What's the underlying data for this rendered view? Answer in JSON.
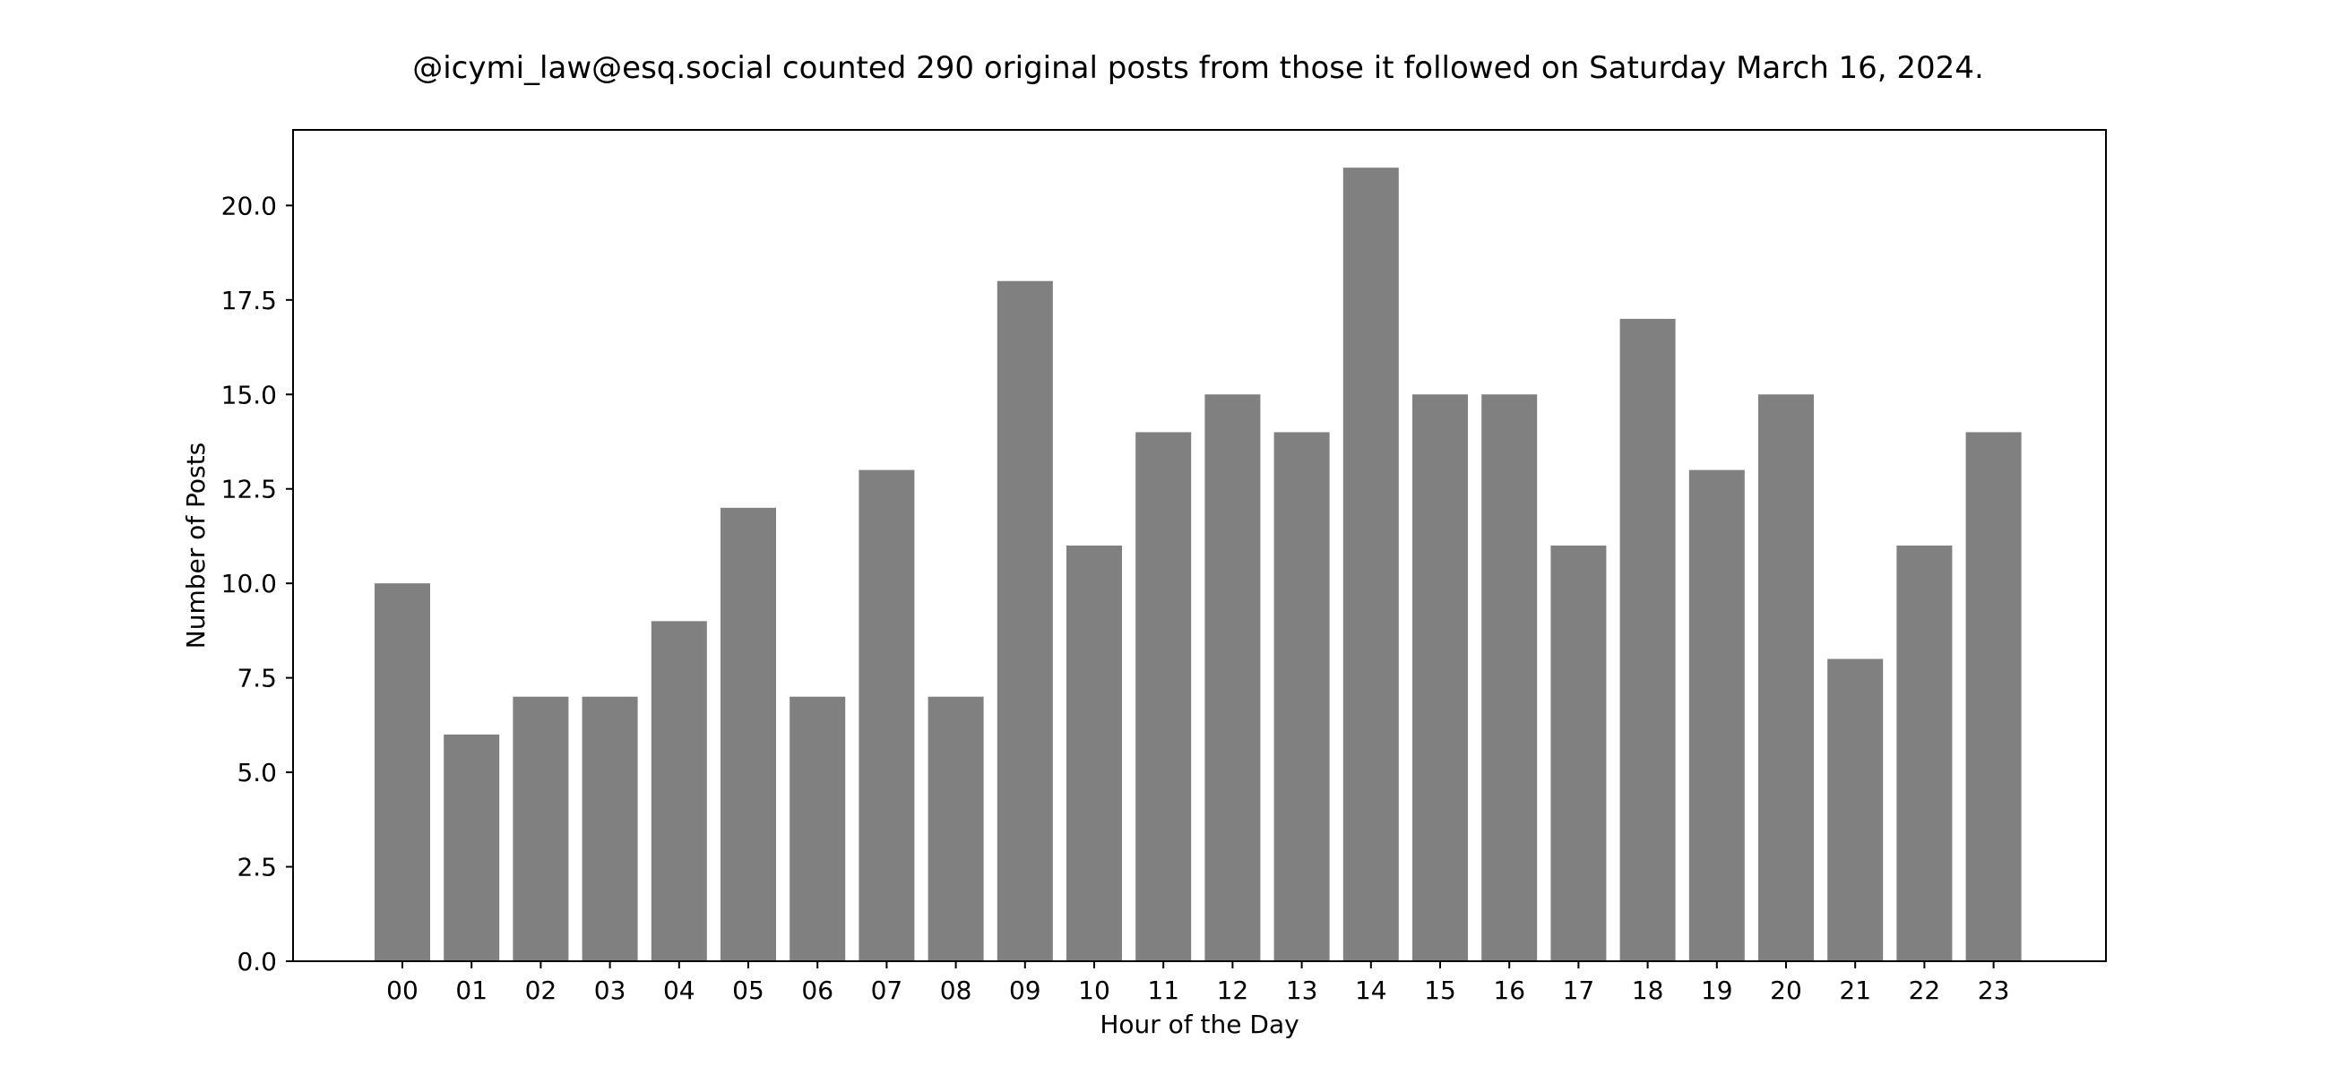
{
  "chart_data": {
    "type": "bar",
    "title": "@icymi_law@esq.social counted 290 original posts from those it followed on Saturday March 16, 2024.",
    "xlabel": "Hour of the Day",
    "ylabel": "Number of Posts",
    "categories": [
      "00",
      "01",
      "02",
      "03",
      "04",
      "05",
      "06",
      "07",
      "08",
      "09",
      "10",
      "11",
      "12",
      "13",
      "14",
      "15",
      "16",
      "17",
      "18",
      "19",
      "20",
      "21",
      "22",
      "23"
    ],
    "values": [
      10,
      6,
      7,
      7,
      9,
      12,
      7,
      13,
      7,
      18,
      11,
      14,
      15,
      14,
      21,
      15,
      15,
      11,
      17,
      13,
      15,
      8,
      11,
      14
    ],
    "ylim": [
      0,
      22
    ],
    "yticks": [
      "0.0",
      "2.5",
      "5.0",
      "7.5",
      "10.0",
      "12.5",
      "15.0",
      "17.5",
      "20.0"
    ],
    "bar_color": "#808080",
    "grid": false,
    "legend": false
  }
}
